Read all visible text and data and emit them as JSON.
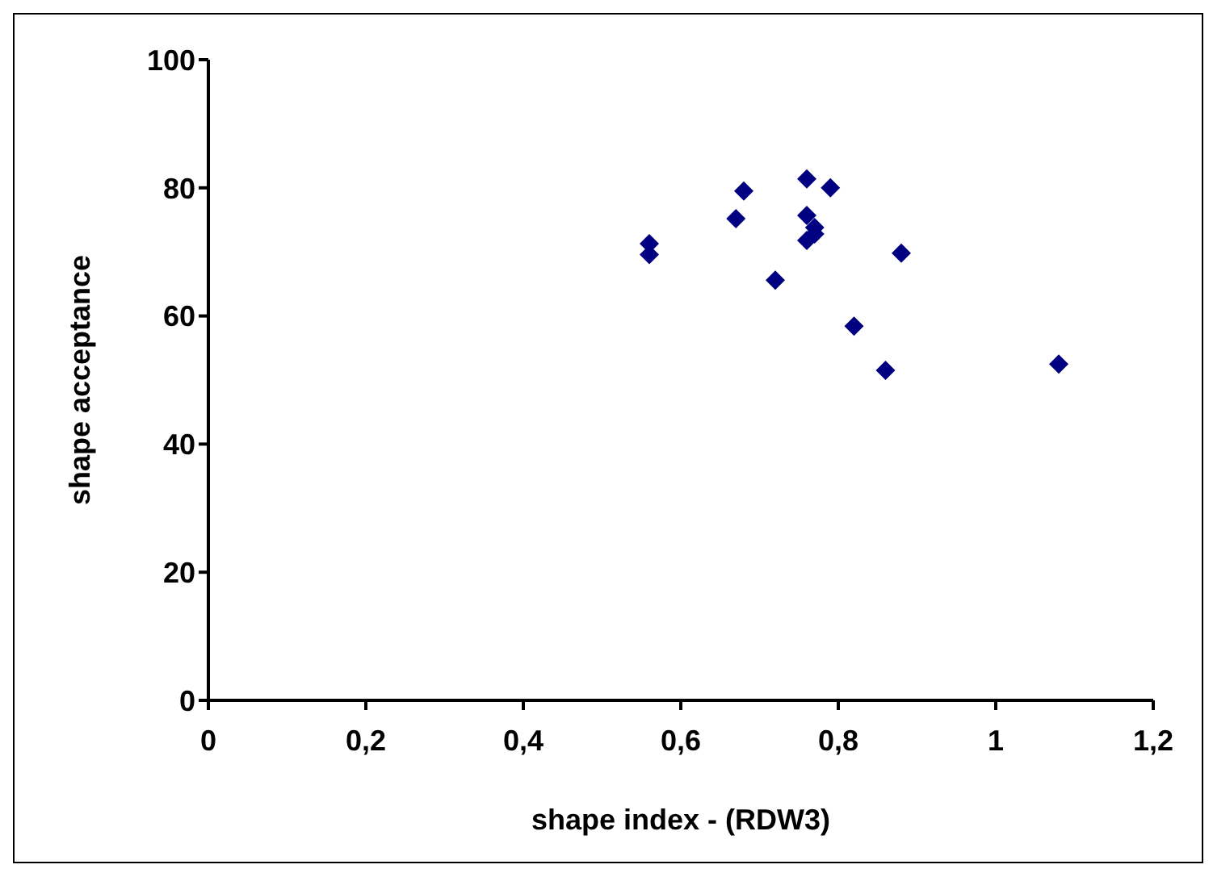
{
  "chart_data": {
    "type": "scatter",
    "xlabel": "shape index - (RDW3)",
    "ylabel": "shape acceptance",
    "x": [
      0.56,
      0.56,
      0.67,
      0.68,
      0.72,
      0.76,
      0.76,
      0.76,
      0.77,
      0.77,
      0.79,
      0.82,
      0.86,
      0.88,
      1.08
    ],
    "series": [
      {
        "color": "#000080",
        "values": [
          69.6,
          71.3,
          75.2,
          79.5,
          65.6,
          81.4,
          75.7,
          71.8,
          73.8,
          72.8,
          80,
          58.4,
          51.5,
          69.8,
          52.5
        ]
      }
    ],
    "xlim": [
      0,
      1.2
    ],
    "xticks": [
      0,
      {
        "value": 0.2,
        "label": "0,2"
      },
      {
        "value": 0.4,
        "label": "0,4"
      },
      {
        "value": 0.6,
        "label": "0,6"
      },
      {
        "value": 0.8,
        "label": "0,8"
      },
      1,
      {
        "value": 1.2,
        "label": "1,2"
      }
    ],
    "ylim": [
      0,
      100
    ],
    "yticks": [
      0,
      20,
      40,
      60,
      80,
      100
    ],
    "grid": false,
    "legend": false,
    "marker": "diamond"
  }
}
